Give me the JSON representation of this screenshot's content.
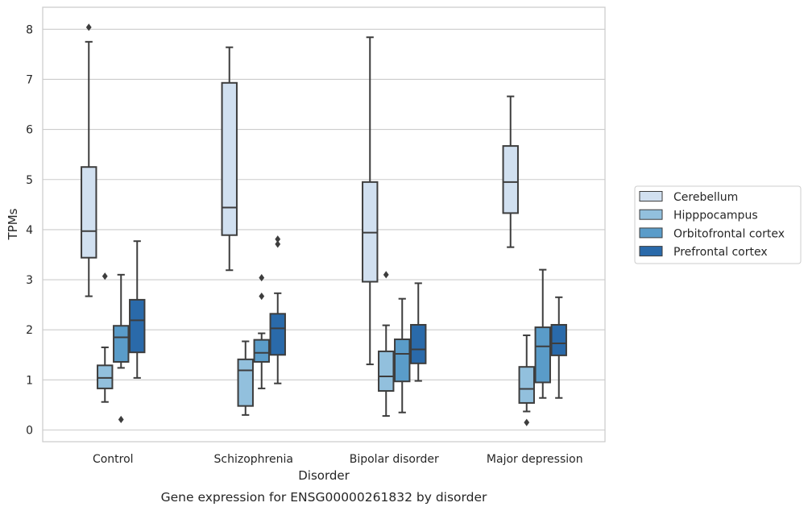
{
  "chart_data": {
    "type": "box",
    "caption": "Gene expression for ENSG00000261832 by disorder",
    "xlabel": "Disorder",
    "ylabel": "TPMs",
    "ylim": [
      -0.2,
      8.4
    ],
    "yticks": [
      "0",
      "1",
      "2",
      "3",
      "4",
      "5",
      "6",
      "7",
      "8"
    ],
    "grid": true,
    "legend_position": "right",
    "categories": [
      "Control",
      "Schizophrenia",
      "Bipolar disorder",
      "Major depression"
    ],
    "series": [
      {
        "name": "Cerebellum",
        "color": "#d1e0f0",
        "boxes": [
          {
            "whisker_low": 2.67,
            "q1": 3.44,
            "median": 3.97,
            "q3": 5.25,
            "whisker_high": 7.75,
            "outliers": [
              8.04
            ]
          },
          {
            "whisker_low": 3.19,
            "q1": 3.89,
            "median": 4.44,
            "q3": 6.93,
            "whisker_high": 7.64,
            "outliers": []
          },
          {
            "whisker_low": 1.31,
            "q1": 2.96,
            "median": 3.94,
            "q3": 4.95,
            "whisker_high": 7.84,
            "outliers": []
          },
          {
            "whisker_low": 3.65,
            "q1": 4.33,
            "median": 4.95,
            "q3": 5.67,
            "whisker_high": 6.66,
            "outliers": []
          }
        ]
      },
      {
        "name": "Hipppocampus",
        "color": "#92c0dd",
        "boxes": [
          {
            "whisker_low": 0.56,
            "q1": 0.83,
            "median": 1.04,
            "q3": 1.29,
            "whisker_high": 1.65,
            "outliers": [
              3.07
            ]
          },
          {
            "whisker_low": 0.3,
            "q1": 0.48,
            "median": 1.19,
            "q3": 1.41,
            "whisker_high": 1.77,
            "outliers": []
          },
          {
            "whisker_low": 0.28,
            "q1": 0.78,
            "median": 1.07,
            "q3": 1.57,
            "whisker_high": 2.09,
            "outliers": [
              3.1
            ]
          },
          {
            "whisker_low": 0.37,
            "q1": 0.54,
            "median": 0.82,
            "q3": 1.26,
            "whisker_high": 1.89,
            "outliers": [
              0.15
            ]
          }
        ]
      },
      {
        "name": "Orbitofrontal cortex",
        "color": "#5a9cc9",
        "boxes": [
          {
            "whisker_low": 1.24,
            "q1": 1.36,
            "median": 1.85,
            "q3": 2.08,
            "whisker_high": 3.1,
            "outliers": [
              0.21
            ]
          },
          {
            "whisker_low": 0.83,
            "q1": 1.36,
            "median": 1.54,
            "q3": 1.8,
            "whisker_high": 1.93,
            "outliers": [
              2.67,
              3.04
            ]
          },
          {
            "whisker_low": 0.35,
            "q1": 0.97,
            "median": 1.52,
            "q3": 1.81,
            "whisker_high": 2.62,
            "outliers": []
          },
          {
            "whisker_low": 0.64,
            "q1": 0.95,
            "median": 1.67,
            "q3": 2.05,
            "whisker_high": 3.2,
            "outliers": []
          }
        ]
      },
      {
        "name": "Prefrontal cortex",
        "color": "#2a6aaa",
        "boxes": [
          {
            "whisker_low": 1.04,
            "q1": 1.55,
            "median": 2.19,
            "q3": 2.6,
            "whisker_high": 3.77,
            "outliers": []
          },
          {
            "whisker_low": 0.93,
            "q1": 1.5,
            "median": 2.03,
            "q3": 2.32,
            "whisker_high": 2.73,
            "outliers": [
              3.71,
              3.81
            ]
          },
          {
            "whisker_low": 0.98,
            "q1": 1.33,
            "median": 1.61,
            "q3": 2.1,
            "whisker_high": 2.93,
            "outliers": []
          },
          {
            "whisker_low": 0.64,
            "q1": 1.49,
            "median": 1.73,
            "q3": 2.1,
            "whisker_high": 2.65,
            "outliers": []
          }
        ]
      }
    ]
  }
}
